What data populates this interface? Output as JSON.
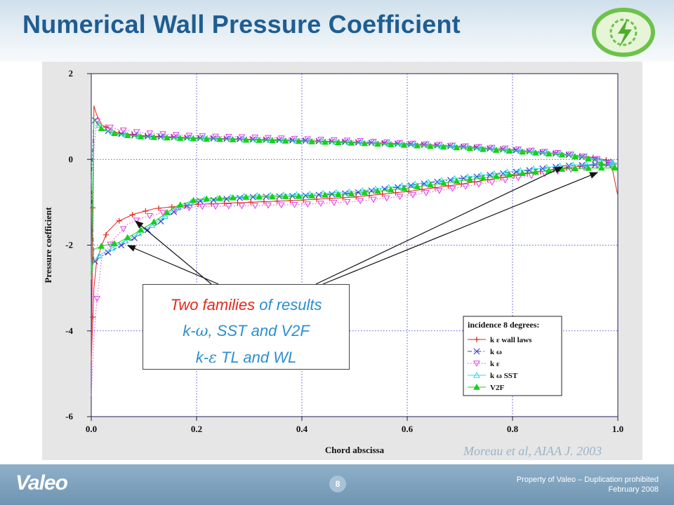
{
  "slide": {
    "title": "Numerical Wall Pressure Coefficient",
    "callout": {
      "line1_highlight": "Two families",
      "line1_rest": " of results",
      "line2_prefix": "k-",
      "line2_symbol": "ω",
      "line2_rest": ", SST and V2F",
      "line3_prefix": "k-",
      "line3_symbol": "ε",
      "line3_rest": " TL and WL"
    },
    "citation": "Moreau et al, AIAA J. 2003",
    "footer": {
      "brand": "Valeo",
      "page_number": "8",
      "property_line": "Property of Valeo – Duplication prohibited",
      "date_line": "February 2008"
    },
    "colors": {
      "title": "#1f5d92",
      "callout_text": "#2b8fd0",
      "callout_highlight": "#e02a1e",
      "grid": "#2222cc"
    }
  },
  "chart_data": {
    "type": "line",
    "xlabel": "Chord abscissa",
    "ylabel": "Pressure coefficient",
    "xlim": [
      0.0,
      1.0
    ],
    "ylim": [
      -6,
      2
    ],
    "xticks": [
      "0.0",
      "0.2",
      "0.4",
      "0.6",
      "0.8",
      "1.0"
    ],
    "yticks": [
      "2",
      "0",
      "-2",
      "-4",
      "-6"
    ],
    "grid": true,
    "legend": {
      "title": "incidence 8 degrees:",
      "position": "bottom-right",
      "entries": [
        {
          "label": "k ε wall laws",
          "color": "#e0261b",
          "marker": "+",
          "dash": "solid"
        },
        {
          "label": "k ω",
          "color": "#3a3acd",
          "marker": "x",
          "dash": "dashdot"
        },
        {
          "label": "k ε",
          "color": "#e040e0",
          "marker": "triangle-down",
          "dash": "dotted"
        },
        {
          "label": "k ω SST",
          "color": "#30d8e8",
          "marker": "triangle-up-open",
          "dash": "solid"
        },
        {
          "label": "V2F",
          "color": "#18d018",
          "marker": "triangle-up-filled",
          "dash": "solid"
        }
      ]
    },
    "series": [
      {
        "name": "k ε wall laws",
        "upper": [
          [
            0.0,
            -4.7
          ],
          [
            0.005,
            1.25
          ],
          [
            0.01,
            1.05
          ],
          [
            0.02,
            0.8
          ],
          [
            0.05,
            0.62
          ],
          [
            0.1,
            0.55
          ],
          [
            0.2,
            0.5
          ],
          [
            0.3,
            0.47
          ],
          [
            0.4,
            0.44
          ],
          [
            0.5,
            0.4
          ],
          [
            0.6,
            0.36
          ],
          [
            0.7,
            0.3
          ],
          [
            0.8,
            0.22
          ],
          [
            0.9,
            0.12
          ],
          [
            0.95,
            0.05
          ],
          [
            0.98,
            -0.02
          ],
          [
            0.99,
            -0.25
          ],
          [
            1.0,
            -0.85
          ]
        ],
        "lower": [
          [
            0.0,
            -4.7
          ],
          [
            0.005,
            -3.0
          ],
          [
            0.01,
            -2.4
          ],
          [
            0.02,
            -2.0
          ],
          [
            0.03,
            -1.7
          ],
          [
            0.05,
            -1.45
          ],
          [
            0.08,
            -1.28
          ],
          [
            0.12,
            -1.15
          ],
          [
            0.2,
            -1.05
          ],
          [
            0.3,
            -1.0
          ],
          [
            0.4,
            -0.95
          ],
          [
            0.5,
            -0.88
          ],
          [
            0.6,
            -0.75
          ],
          [
            0.7,
            -0.58
          ],
          [
            0.8,
            -0.38
          ],
          [
            0.9,
            -0.2
          ],
          [
            0.96,
            -0.12
          ],
          [
            1.0,
            -0.1
          ]
        ]
      },
      {
        "name": "k ω",
        "upper": [
          [
            0.0,
            -0.5
          ],
          [
            0.005,
            0.95
          ],
          [
            0.01,
            0.85
          ],
          [
            0.02,
            0.7
          ],
          [
            0.05,
            0.6
          ],
          [
            0.1,
            0.54
          ],
          [
            0.2,
            0.5
          ],
          [
            0.3,
            0.47
          ],
          [
            0.4,
            0.44
          ],
          [
            0.5,
            0.4
          ],
          [
            0.6,
            0.36
          ],
          [
            0.7,
            0.3
          ],
          [
            0.8,
            0.22
          ],
          [
            0.9,
            0.12
          ],
          [
            0.95,
            0.02
          ],
          [
            1.0,
            -0.1
          ]
        ],
        "lower": [
          [
            0.0,
            -0.5
          ],
          [
            0.005,
            -2.4
          ],
          [
            0.02,
            -2.25
          ],
          [
            0.05,
            -2.05
          ],
          [
            0.08,
            -1.85
          ],
          [
            0.12,
            -1.55
          ],
          [
            0.16,
            -1.2
          ],
          [
            0.2,
            -0.98
          ],
          [
            0.3,
            -0.88
          ],
          [
            0.4,
            -0.85
          ],
          [
            0.5,
            -0.78
          ],
          [
            0.6,
            -0.62
          ],
          [
            0.7,
            -0.45
          ],
          [
            0.8,
            -0.3
          ],
          [
            0.9,
            -0.15
          ],
          [
            0.96,
            -0.12
          ],
          [
            1.0,
            -0.1
          ]
        ]
      },
      {
        "name": "k ε",
        "upper": [
          [
            0.0,
            -5.5
          ],
          [
            0.005,
            0.25
          ],
          [
            0.01,
            0.9
          ],
          [
            0.02,
            0.8
          ],
          [
            0.05,
            0.7
          ],
          [
            0.1,
            0.62
          ],
          [
            0.2,
            0.55
          ],
          [
            0.3,
            0.52
          ],
          [
            0.4,
            0.48
          ],
          [
            0.5,
            0.44
          ],
          [
            0.6,
            0.38
          ],
          [
            0.7,
            0.32
          ],
          [
            0.8,
            0.25
          ],
          [
            0.9,
            0.14
          ],
          [
            0.95,
            0.05
          ],
          [
            1.0,
            -0.12
          ]
        ],
        "lower": [
          [
            0.0,
            -5.5
          ],
          [
            0.005,
            -4.15
          ],
          [
            0.01,
            -3.35
          ],
          [
            0.02,
            -2.3
          ],
          [
            0.04,
            -1.9
          ],
          [
            0.07,
            -1.5
          ],
          [
            0.1,
            -1.35
          ],
          [
            0.15,
            -1.2
          ],
          [
            0.2,
            -1.1
          ],
          [
            0.3,
            -1.08
          ],
          [
            0.4,
            -1.05
          ],
          [
            0.5,
            -0.98
          ],
          [
            0.6,
            -0.85
          ],
          [
            0.7,
            -0.65
          ],
          [
            0.8,
            -0.45
          ],
          [
            0.9,
            -0.25
          ],
          [
            0.96,
            -0.15
          ],
          [
            1.0,
            -0.12
          ]
        ]
      },
      {
        "name": "k ω SST",
        "upper": [
          [
            0.0,
            -2.6
          ],
          [
            0.005,
            0.95
          ],
          [
            0.01,
            0.88
          ],
          [
            0.02,
            0.72
          ],
          [
            0.05,
            0.6
          ],
          [
            0.1,
            0.53
          ],
          [
            0.2,
            0.49
          ],
          [
            0.3,
            0.46
          ],
          [
            0.4,
            0.43
          ],
          [
            0.5,
            0.39
          ],
          [
            0.6,
            0.35
          ],
          [
            0.7,
            0.29
          ],
          [
            0.8,
            0.21
          ],
          [
            0.9,
            0.12
          ],
          [
            0.95,
            0.03
          ],
          [
            1.0,
            -0.1
          ]
        ],
        "lower": [
          [
            0.0,
            -2.6
          ],
          [
            0.005,
            -2.35
          ],
          [
            0.02,
            -2.2
          ],
          [
            0.05,
            -2.0
          ],
          [
            0.08,
            -1.8
          ],
          [
            0.12,
            -1.5
          ],
          [
            0.16,
            -1.15
          ],
          [
            0.2,
            -0.95
          ],
          [
            0.3,
            -0.85
          ],
          [
            0.4,
            -0.82
          ],
          [
            0.5,
            -0.75
          ],
          [
            0.6,
            -0.6
          ],
          [
            0.7,
            -0.43
          ],
          [
            0.8,
            -0.28
          ],
          [
            0.9,
            -0.14
          ],
          [
            0.96,
            -0.11
          ],
          [
            1.0,
            -0.1
          ]
        ]
      },
      {
        "name": "V2F",
        "upper": [
          [
            0.0,
            -2.8
          ],
          [
            0.005,
            0.95
          ],
          [
            0.01,
            0.88
          ],
          [
            0.02,
            0.7
          ],
          [
            0.05,
            0.58
          ],
          [
            0.1,
            0.52
          ],
          [
            0.2,
            0.48
          ],
          [
            0.3,
            0.45
          ],
          [
            0.4,
            0.42
          ],
          [
            0.5,
            0.38
          ],
          [
            0.6,
            0.33
          ],
          [
            0.7,
            0.27
          ],
          [
            0.8,
            0.19
          ],
          [
            0.9,
            0.1
          ],
          [
            0.95,
            0.0
          ],
          [
            0.98,
            -0.15
          ],
          [
            1.0,
            -0.2
          ]
        ],
        "lower": [
          [
            0.0,
            -2.8
          ],
          [
            0.005,
            -2.1
          ],
          [
            0.02,
            -2.02
          ],
          [
            0.05,
            -1.95
          ],
          [
            0.08,
            -1.75
          ],
          [
            0.12,
            -1.45
          ],
          [
            0.16,
            -1.1
          ],
          [
            0.2,
            -0.93
          ],
          [
            0.3,
            -0.88
          ],
          [
            0.4,
            -0.86
          ],
          [
            0.5,
            -0.8
          ],
          [
            0.6,
            -0.67
          ],
          [
            0.7,
            -0.5
          ],
          [
            0.8,
            -0.35
          ],
          [
            0.9,
            -0.22
          ],
          [
            0.96,
            -0.2
          ],
          [
            1.0,
            -0.2
          ]
        ]
      }
    ]
  }
}
